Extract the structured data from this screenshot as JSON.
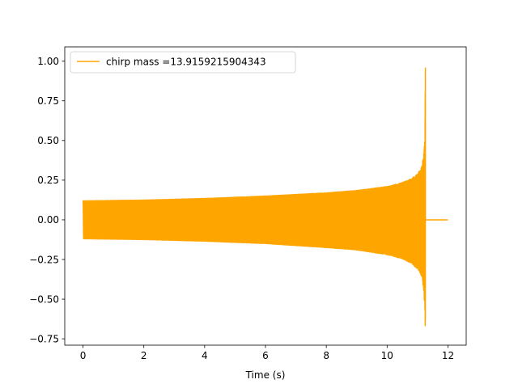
{
  "chart_data": {
    "type": "line",
    "title": "",
    "xlabel": "Time (s)",
    "ylabel": "",
    "xlim": [
      -0.6,
      12.6
    ],
    "ylim": [
      -0.79,
      1.09
    ],
    "grid": false,
    "legend_placement": "top-left",
    "x_ticks": [
      0,
      2,
      4,
      6,
      8,
      10,
      12
    ],
    "y_ticks": [
      -0.75,
      -0.5,
      -0.25,
      0.0,
      0.25,
      0.5,
      0.75,
      1.0
    ],
    "x_tick_labels": [
      "0",
      "2",
      "4",
      "6",
      "8",
      "10",
      "12"
    ],
    "y_tick_labels": [
      "−0.75",
      "−0.50",
      "−0.25",
      "0.00",
      "0.25",
      "0.50",
      "0.75",
      "1.00"
    ],
    "series": [
      {
        "name": "chirp mass =13.9159215904343",
        "color": "#ffa500",
        "envelope_x": [
          0,
          2,
          4,
          6,
          8,
          9,
          10,
          10.5,
          10.8,
          11.0,
          11.1,
          11.15,
          11.2,
          11.22,
          11.24,
          11.25,
          11.26
        ],
        "envelope_upper": [
          0.12,
          0.125,
          0.135,
          0.15,
          0.17,
          0.185,
          0.21,
          0.235,
          0.26,
          0.29,
          0.32,
          0.35,
          0.41,
          0.46,
          0.5,
          0.8,
          1.0
        ],
        "envelope_lower": [
          -0.12,
          -0.125,
          -0.135,
          -0.15,
          -0.175,
          -0.19,
          -0.22,
          -0.245,
          -0.275,
          -0.31,
          -0.34,
          -0.37,
          -0.44,
          -0.5,
          -0.55,
          -0.65,
          -0.72
        ],
        "merger_x": 11.26,
        "end_x": 12.0,
        "post_merger_value": 0.0
      }
    ]
  }
}
